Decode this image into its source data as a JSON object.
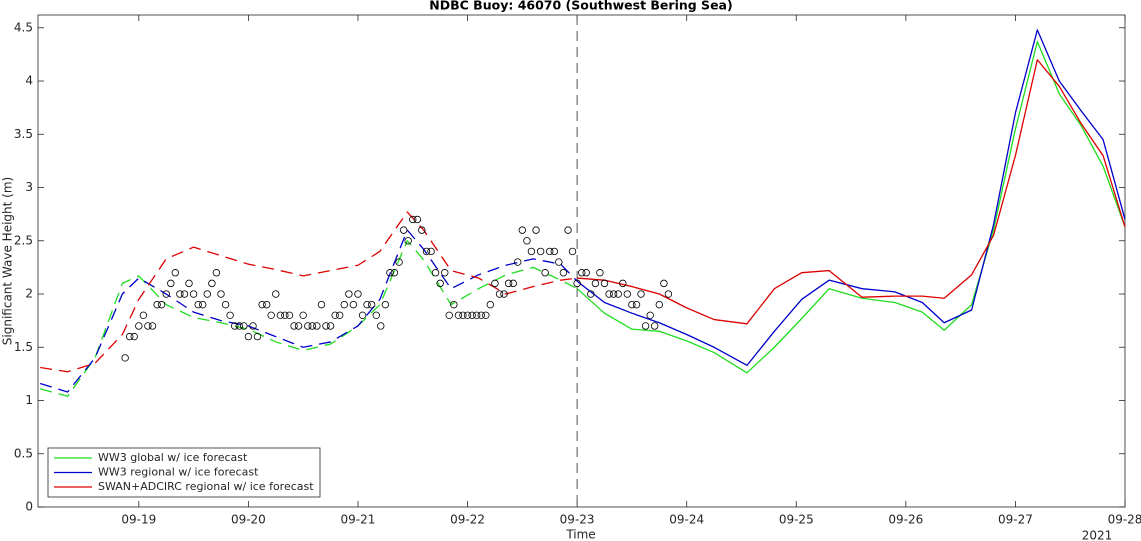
{
  "chart_data": {
    "type": "line",
    "title": "NDBC Buoy: 46070 (Southwest Bering Sea)",
    "x_label": "Time",
    "y_label": "Significant Wave Height (m)",
    "x_year_label": "2021",
    "xlim": [
      18.08,
      28
    ],
    "xticks": [
      {
        "value": 19,
        "label": "09-19"
      },
      {
        "value": 20,
        "label": "09-20"
      },
      {
        "value": 21,
        "label": "09-21"
      },
      {
        "value": 22,
        "label": "09-22"
      },
      {
        "value": 23,
        "label": "09-23"
      },
      {
        "value": 24,
        "label": "09-24"
      },
      {
        "value": 25,
        "label": "09-25"
      },
      {
        "value": 26,
        "label": "09-26"
      },
      {
        "value": 27,
        "label": "09-27"
      },
      {
        "value": 28,
        "label": "09-28"
      }
    ],
    "ylim": [
      0,
      4.62
    ],
    "yticks": [
      0,
      0.5,
      1,
      1.5,
      2,
      2.5,
      3,
      3.5,
      4,
      4.5
    ],
    "grid": false,
    "legend": "lower left",
    "forecast_start": 23,
    "x": [
      18.1,
      18.35,
      18.6,
      18.85,
      19.0,
      19.25,
      19.5,
      19.75,
      20.0,
      20.25,
      20.5,
      20.75,
      21.0,
      21.2,
      21.45,
      21.6,
      21.85,
      22.1,
      22.35,
      22.6,
      22.85,
      23.0,
      23.25,
      23.5,
      23.75,
      24.0,
      24.25,
      24.55,
      24.8,
      25.05,
      25.3,
      25.6,
      25.9,
      26.15,
      26.35,
      26.6,
      26.8,
      27.0,
      27.2,
      27.4,
      27.6,
      27.8,
      28.0
    ],
    "series": [
      {
        "name": "WW3 global w/ ice forecast",
        "color": "#1fdd1f",
        "values": [
          1.11,
          1.04,
          1.4,
          2.1,
          2.17,
          1.9,
          1.78,
          1.73,
          1.67,
          1.55,
          1.47,
          1.53,
          1.7,
          1.9,
          2.5,
          2.32,
          1.9,
          2.05,
          2.18,
          2.25,
          2.13,
          2.05,
          1.82,
          1.67,
          1.65,
          1.56,
          1.45,
          1.26,
          1.5,
          1.77,
          2.05,
          1.96,
          1.92,
          1.83,
          1.66,
          1.9,
          2.6,
          3.55,
          4.37,
          3.88,
          3.58,
          3.2,
          2.63
        ]
      },
      {
        "name": "WW3 regional w/ ice forecast",
        "color": "#0000cc",
        "values": [
          1.16,
          1.08,
          1.4,
          2.0,
          2.15,
          2.0,
          1.83,
          1.75,
          1.7,
          1.6,
          1.5,
          1.55,
          1.7,
          1.95,
          2.6,
          2.42,
          2.05,
          2.18,
          2.27,
          2.33,
          2.28,
          2.12,
          1.92,
          1.82,
          1.73,
          1.62,
          1.5,
          1.33,
          1.65,
          1.95,
          2.13,
          2.05,
          2.02,
          1.92,
          1.73,
          1.85,
          2.65,
          3.7,
          4.48,
          4.0,
          3.72,
          3.45,
          2.7
        ]
      },
      {
        "name": "SWAN+ADCIRC regional w/ ice forecast",
        "color": "#dd0000",
        "values": [
          1.31,
          1.27,
          1.35,
          1.62,
          1.95,
          2.33,
          2.44,
          2.36,
          2.28,
          2.23,
          2.17,
          2.22,
          2.27,
          2.4,
          2.77,
          2.6,
          2.22,
          2.15,
          2.0,
          2.07,
          2.13,
          2.15,
          2.13,
          2.07,
          2.0,
          1.87,
          1.76,
          1.72,
          2.05,
          2.2,
          2.22,
          1.97,
          1.98,
          1.98,
          1.96,
          2.18,
          2.55,
          3.3,
          4.2,
          3.95,
          3.6,
          3.3,
          2.63
        ]
      }
    ],
    "points": {
      "x": [
        18.875,
        18.917,
        18.958,
        19.0,
        19.042,
        19.083,
        19.125,
        19.167,
        19.208,
        19.25,
        19.292,
        19.333,
        19.375,
        19.417,
        19.458,
        19.5,
        19.542,
        19.583,
        19.625,
        19.667,
        19.708,
        19.75,
        19.792,
        19.833,
        19.875,
        19.917,
        19.958,
        20.0,
        20.042,
        20.083,
        20.125,
        20.167,
        20.208,
        20.25,
        20.292,
        20.333,
        20.375,
        20.417,
        20.458,
        20.5,
        20.542,
        20.583,
        20.625,
        20.667,
        20.708,
        20.75,
        20.792,
        20.833,
        20.875,
        20.917,
        20.958,
        21.0,
        21.042,
        21.083,
        21.125,
        21.167,
        21.208,
        21.25,
        21.292,
        21.333,
        21.375,
        21.417,
        21.458,
        21.5,
        21.542,
        21.583,
        21.625,
        21.667,
        21.708,
        21.75,
        21.792,
        21.833,
        21.875,
        21.917,
        21.958,
        22.0,
        22.042,
        22.083,
        22.125,
        22.167,
        22.208,
        22.25,
        22.292,
        22.333,
        22.375,
        22.417,
        22.458,
        22.5,
        22.542,
        22.583,
        22.625,
        22.667,
        22.708,
        22.75,
        22.792,
        22.833,
        22.875,
        22.917,
        22.958,
        23.0,
        23.042,
        23.083,
        23.125,
        23.167,
        23.208,
        23.25,
        23.292,
        23.333,
        23.375,
        23.417,
        23.458,
        23.5,
        23.542,
        23.583,
        23.625,
        23.667,
        23.708,
        23.75,
        23.792,
        23.833
      ],
      "values": [
        1.4,
        1.6,
        1.6,
        1.7,
        1.8,
        1.7,
        1.7,
        1.9,
        1.9,
        2.0,
        2.1,
        2.2,
        2.0,
        2.0,
        2.1,
        2.0,
        1.9,
        1.9,
        2.0,
        2.1,
        2.2,
        2.0,
        1.9,
        1.8,
        1.7,
        1.7,
        1.7,
        1.6,
        1.7,
        1.6,
        1.9,
        1.9,
        1.8,
        2.0,
        1.8,
        1.8,
        1.8,
        1.7,
        1.7,
        1.8,
        1.7,
        1.7,
        1.7,
        1.9,
        1.7,
        1.7,
        1.8,
        1.8,
        1.9,
        2.0,
        1.9,
        2.0,
        1.8,
        1.9,
        1.9,
        1.8,
        1.7,
        1.9,
        2.2,
        2.2,
        2.3,
        2.6,
        2.5,
        2.7,
        2.7,
        2.6,
        2.4,
        2.4,
        2.2,
        2.1,
        2.2,
        1.8,
        1.9,
        1.8,
        1.8,
        1.8,
        1.8,
        1.8,
        1.8,
        1.8,
        1.9,
        2.1,
        2.0,
        2.0,
        2.1,
        2.1,
        2.3,
        2.6,
        2.5,
        2.4,
        2.6,
        2.4,
        2.2,
        2.4,
        2.4,
        2.3,
        2.2,
        2.6,
        2.4,
        2.1,
        2.2,
        2.2,
        2.0,
        2.1,
        2.2,
        2.1,
        2.0,
        2.0,
        2.0,
        2.1,
        2.0,
        1.9,
        1.9,
        2.0,
        1.7,
        1.8,
        1.7,
        1.9,
        2.1,
        2.0
      ]
    }
  }
}
